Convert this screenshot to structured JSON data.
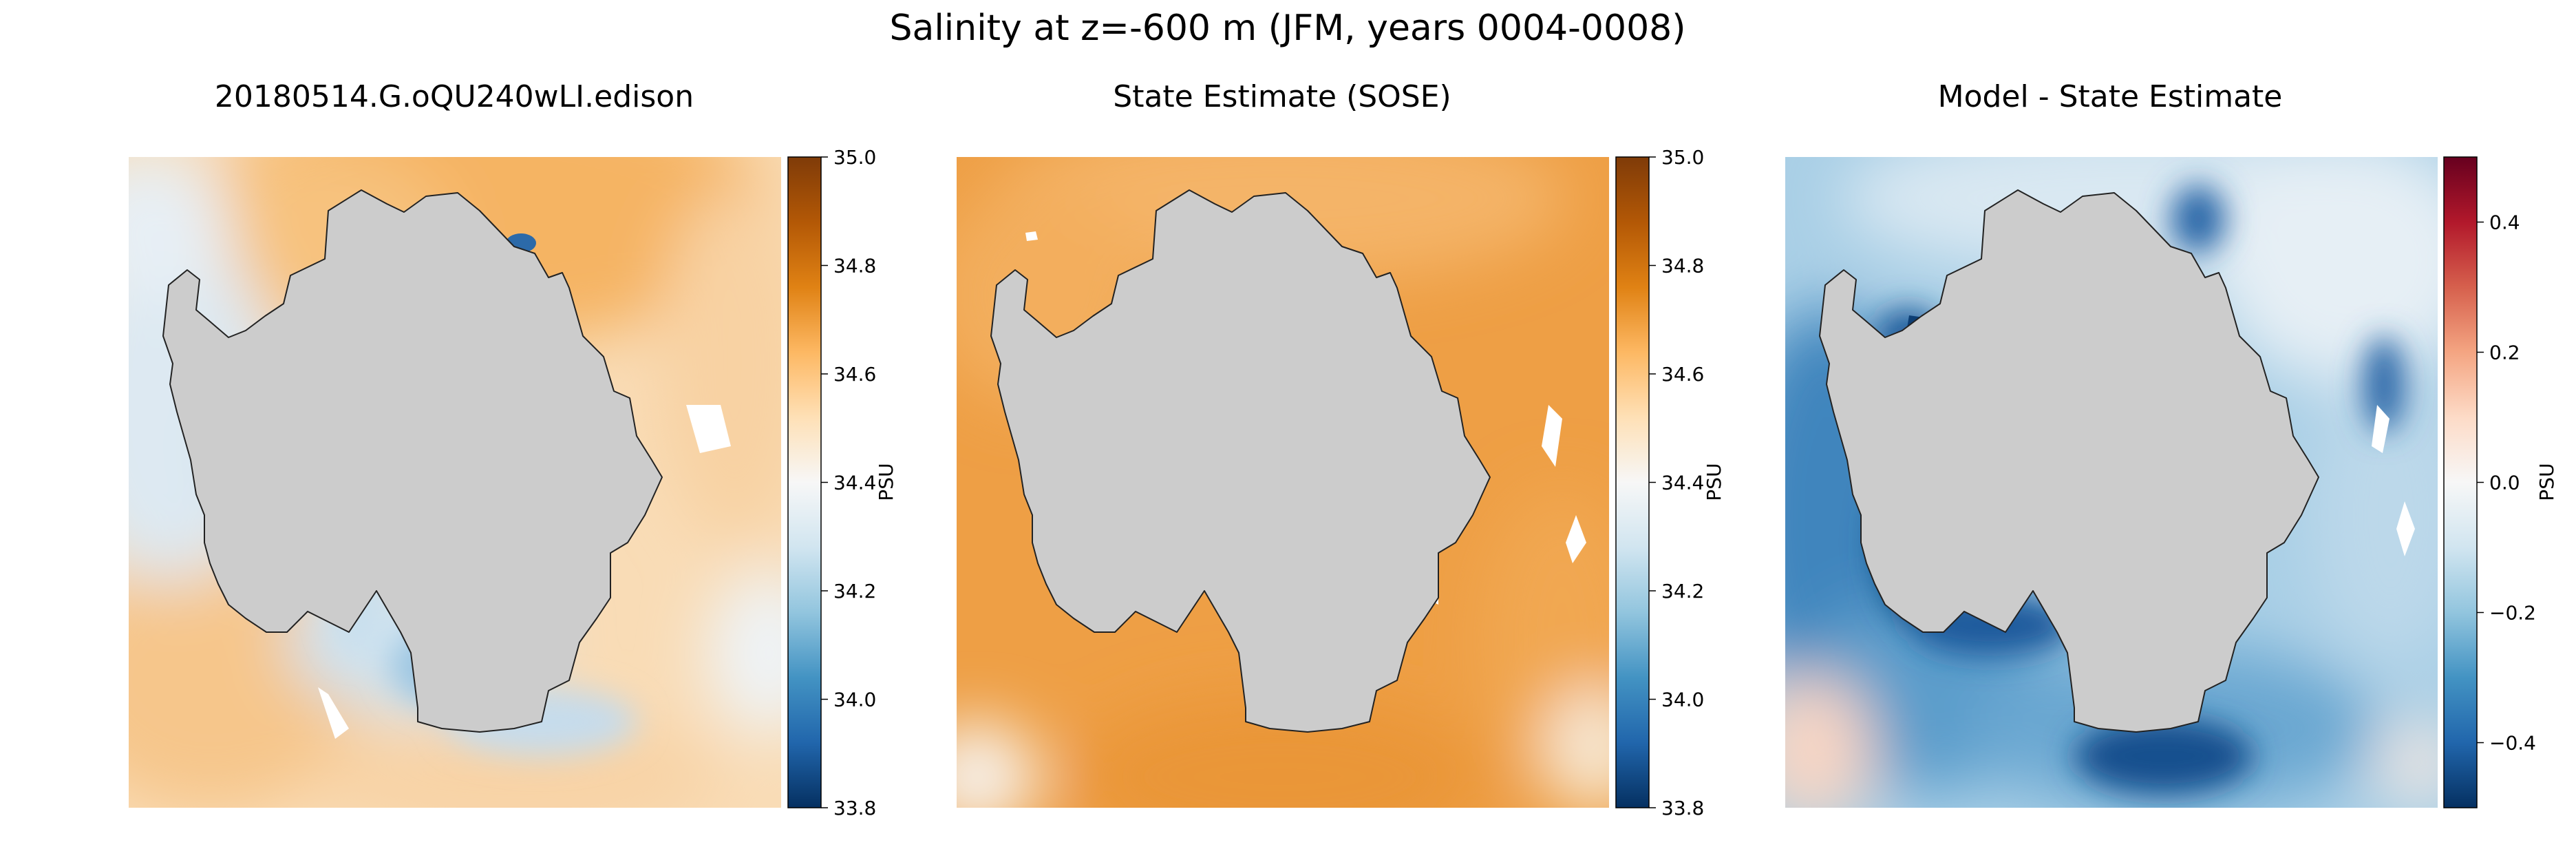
{
  "figure": {
    "suptitle": "Salinity at z=-600 m (JFM, years 0004-0008)"
  },
  "colors": {
    "land": "#cccccc",
    "no_data": "#ffffff",
    "coast": "#222222",
    "orange_cmap": [
      "#053061",
      "#2166ac",
      "#4393c3",
      "#92c5de",
      "#d1e5f0",
      "#f7f7f7",
      "#fee0b6",
      "#fdb863",
      "#e08214",
      "#b35806",
      "#7f3b08"
    ],
    "diff_cmap": [
      "#053061",
      "#2166ac",
      "#4393c3",
      "#92c5de",
      "#d1e5f0",
      "#f7f7f7",
      "#fddbc7",
      "#f4a582",
      "#d6604d",
      "#b2182b",
      "#67001f"
    ]
  },
  "chart_data": [
    {
      "type": "heatmap",
      "title": "20180514.G.oQU240wLI.edison",
      "colorbar": {
        "label": "PSU",
        "vmin": 33.8,
        "vmax": 35.0,
        "ticks": [
          "35.0",
          "34.8",
          "34.6",
          "34.4",
          "34.2",
          "34.0",
          "33.8"
        ],
        "tick_values": [
          35.0,
          34.8,
          34.6,
          34.4,
          34.2,
          34.0,
          33.8
        ]
      },
      "field_summary": {
        "north_shelf_offshore": 34.65,
        "open_ocean_typical": 34.45,
        "coastal_min": 33.8
      }
    },
    {
      "type": "heatmap",
      "title": "State Estimate (SOSE)",
      "colorbar": {
        "label": "PSU",
        "vmin": 33.8,
        "vmax": 35.0,
        "ticks": [
          "35.0",
          "34.8",
          "34.6",
          "34.4",
          "34.2",
          "34.0",
          "33.8"
        ],
        "tick_values": [
          35.0,
          34.8,
          34.6,
          34.4,
          34.2,
          34.0,
          33.8
        ]
      },
      "field_summary": {
        "open_ocean_typical": 34.7,
        "edge_min": 34.4
      }
    },
    {
      "type": "heatmap",
      "title": "Model - State Estimate",
      "colorbar": {
        "label": "PSU",
        "vmin": -0.5,
        "vmax": 0.5,
        "ticks": [
          "0.4",
          "0.2",
          "0.0",
          "−0.2",
          "−0.4"
        ],
        "tick_values": [
          0.4,
          0.2,
          0.0,
          -0.2,
          -0.4
        ]
      },
      "field_summary": {
        "open_ocean_typical": -0.15,
        "coastal_min": -0.5,
        "corner_max": 0.1
      }
    }
  ]
}
